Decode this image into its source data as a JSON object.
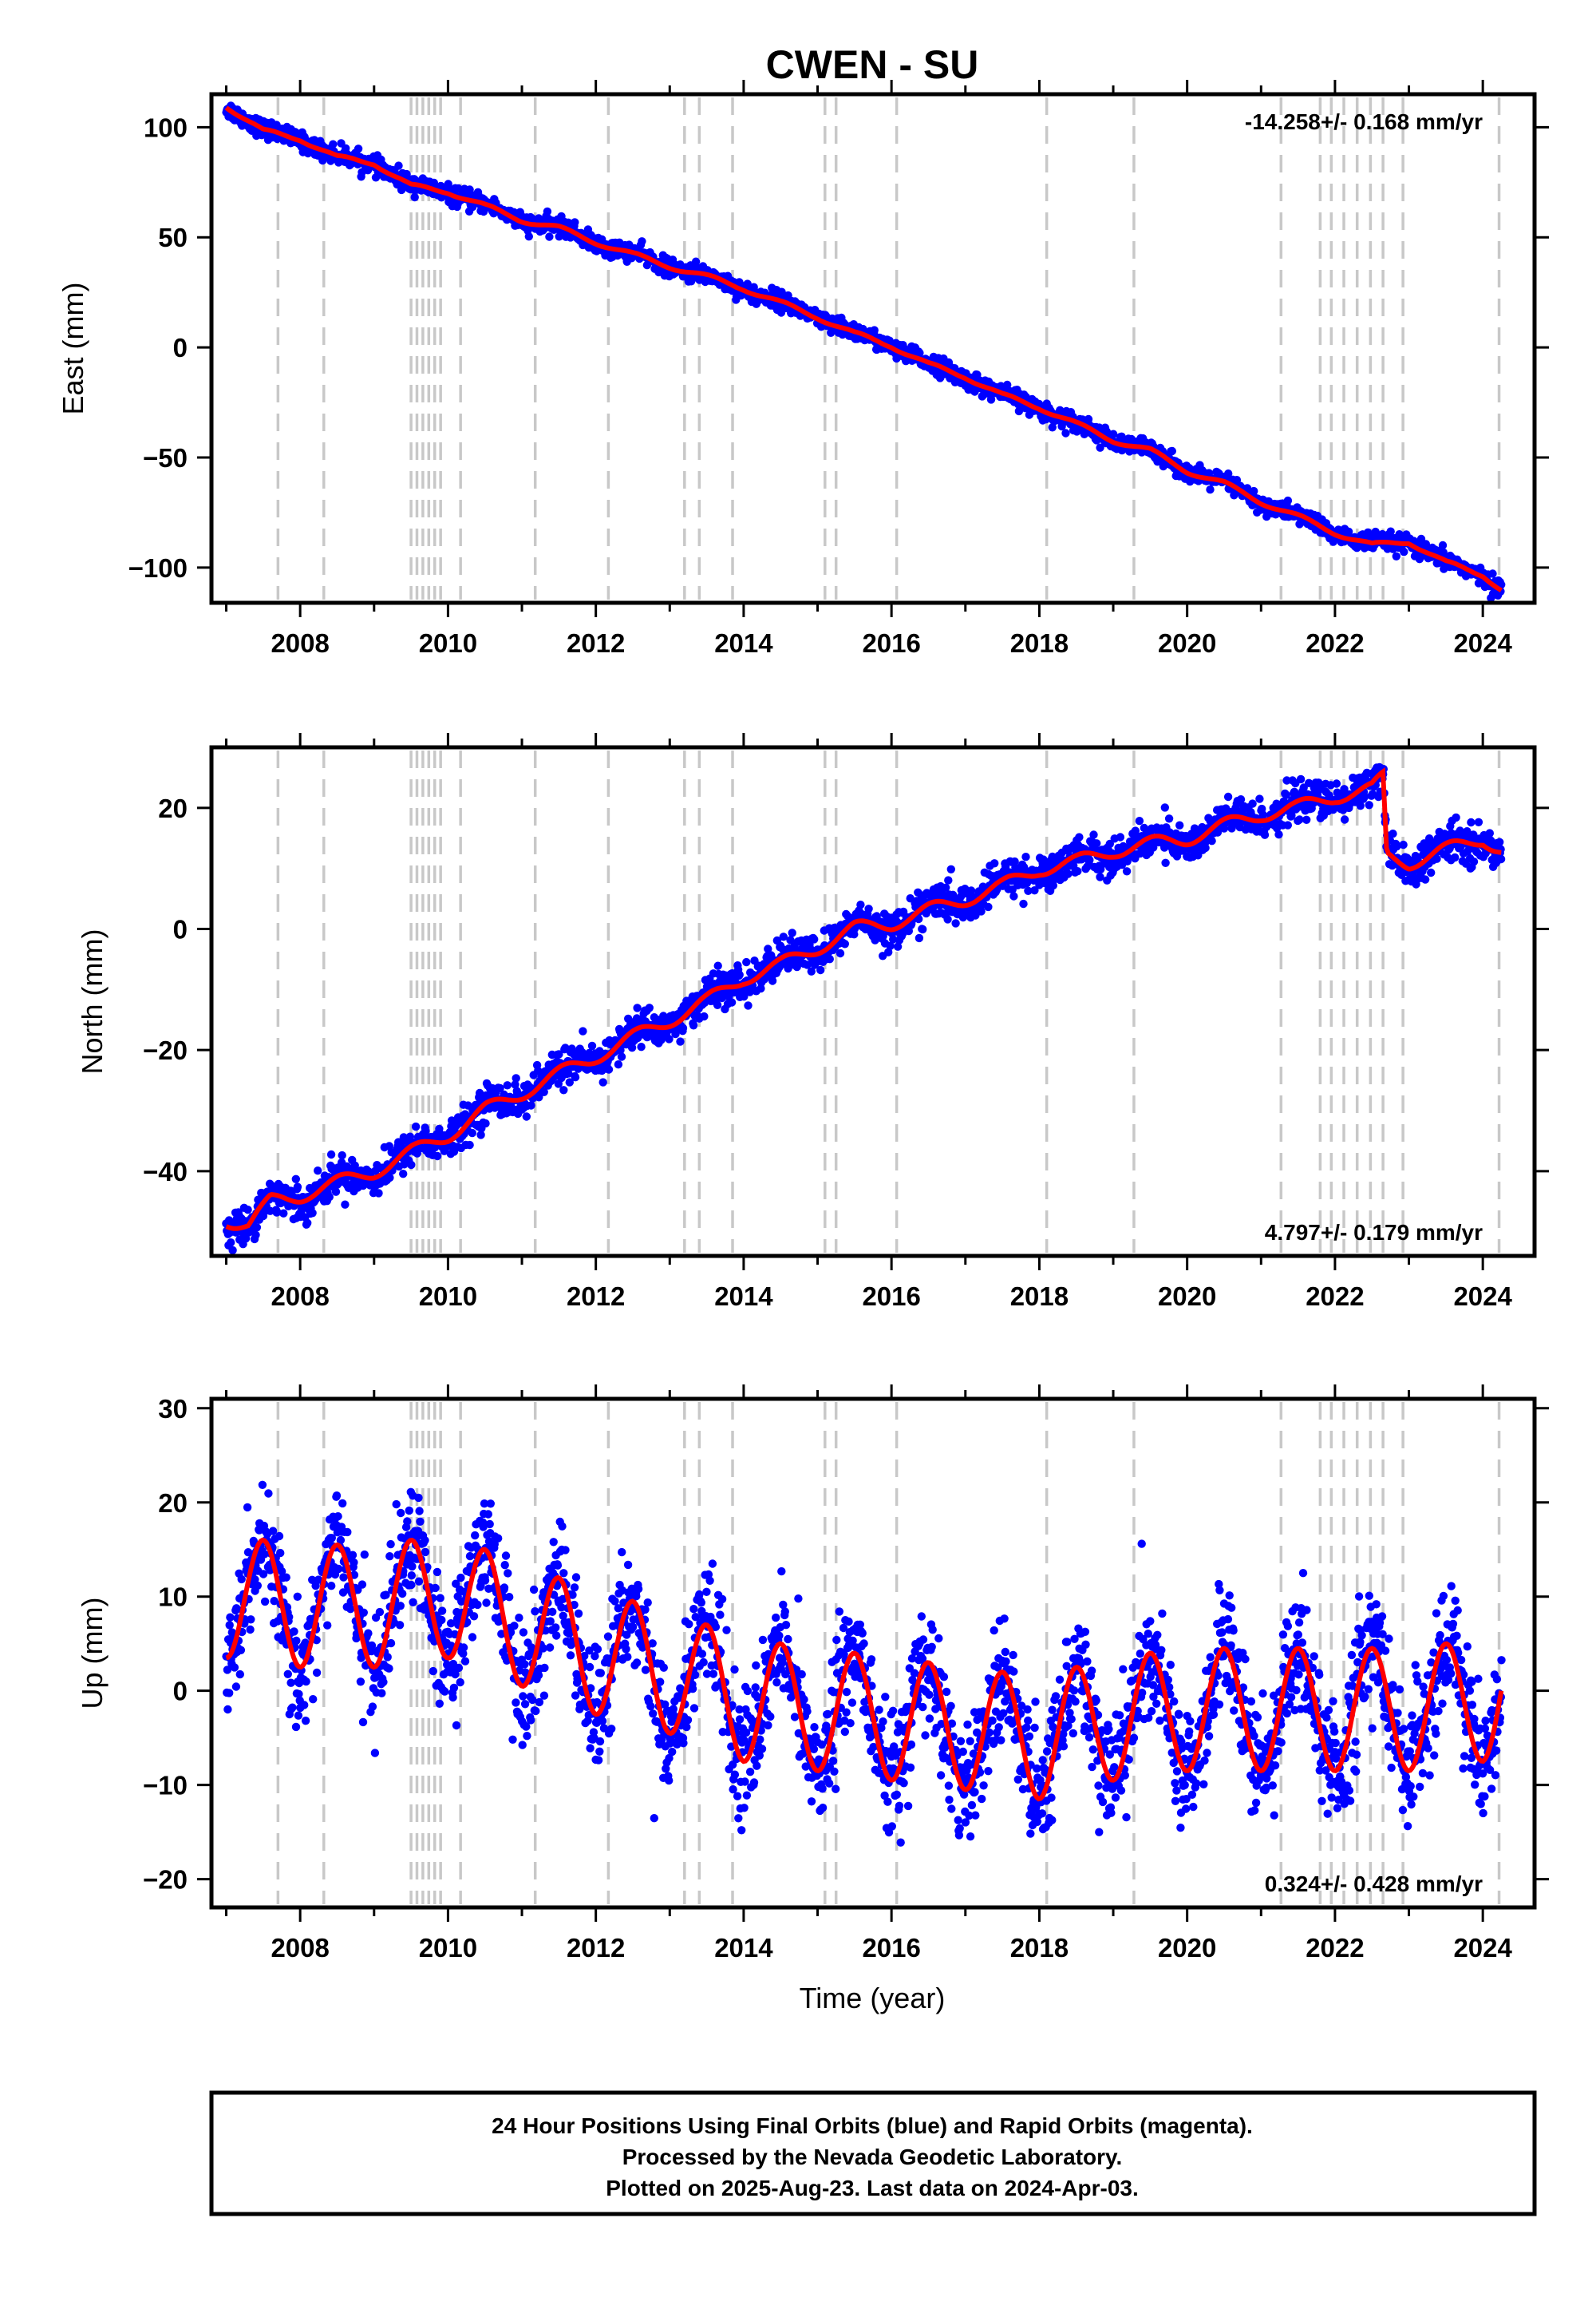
{
  "chart_data": {
    "type": "scatter",
    "title": "CWEN - SU",
    "xlabel": "Time (year)",
    "xlim": [
      2006.8,
      2024.7
    ],
    "x_ticks": [
      2008,
      2010,
      2012,
      2014,
      2016,
      2018,
      2020,
      2022,
      2024
    ],
    "x_tick_labels": [
      "2008",
      "2010",
      "2012",
      "2014",
      "2016",
      "2018",
      "2020",
      "2022",
      "2024"
    ],
    "data_range": [
      2007.0,
      2024.25
    ],
    "last_data": "2024-Apr-03",
    "colors": {
      "points": "#0000ff",
      "fit": "#ff0000",
      "event_lines": "#c8c8c8",
      "frame": "#000000"
    },
    "event_lines": [
      2007.7,
      2008.32,
      2009.5,
      2009.58,
      2009.66,
      2009.74,
      2009.82,
      2009.9,
      2010.17,
      2011.18,
      2012.17,
      2013.2,
      2013.4,
      2013.85,
      2015.1,
      2015.25,
      2016.07,
      2018.1,
      2019.28,
      2021.27,
      2021.8,
      2021.95,
      2022.12,
      2022.3,
      2022.48,
      2022.65,
      2022.92,
      2024.22
    ],
    "panels": [
      {
        "id": "east",
        "ylabel": "East (mm)",
        "ylim": [
          -116,
          115
        ],
        "y_ticks": [
          -100,
          -50,
          0,
          50,
          100
        ],
        "y_tick_labels": [
          "−100",
          "−50",
          "0",
          "50",
          "100"
        ],
        "rate": "-14.258+/- 0.168 mm/yr",
        "rate_position": "top-right",
        "slope_mm_per_yr": -14.258,
        "fit_knots": {
          "x": [
            2007.0,
            2007.5,
            2008.0,
            2008.5,
            2009.0,
            2009.5,
            2010.0,
            2010.5,
            2011.0,
            2011.5,
            2012.0,
            2012.5,
            2013.0,
            2013.5,
            2014.0,
            2014.5,
            2015.0,
            2015.5,
            2016.0,
            2016.5,
            2017.0,
            2017.5,
            2018.0,
            2018.5,
            2019.0,
            2019.5,
            2020.0,
            2020.5,
            2021.0,
            2021.5,
            2022.0,
            2022.5,
            2023.0,
            2023.5,
            2024.0,
            2024.25
          ],
          "y": [
            110,
            98,
            95,
            86,
            84,
            73,
            71,
            64,
            58,
            54,
            48,
            42,
            37,
            32,
            27,
            20,
            14,
            6,
            1,
            -8,
            -13,
            -22,
            -27,
            -35,
            -42,
            -47,
            -56,
            -62,
            -70,
            -77,
            -84,
            -90,
            -88,
            -98,
            -103,
            -110
          ]
        },
        "scatter_sigma": 2.0
      },
      {
        "id": "north",
        "ylabel": "North (mm)",
        "ylim": [
          -54,
          30
        ],
        "y_ticks": [
          -40,
          -20,
          0,
          20
        ],
        "y_tick_labels": [
          "−40",
          "−20",
          "0",
          "20"
        ],
        "rate": "4.797+/- 0.179 mm/yr",
        "rate_position": "bottom-right",
        "slope_mm_per_yr": 4.797,
        "fit_knots": {
          "x": [
            2007.0,
            2007.3,
            2007.6,
            2008.0,
            2008.5,
            2009.0,
            2009.5,
            2010.0,
            2010.5,
            2011.0,
            2011.5,
            2012.0,
            2012.5,
            2013.0,
            2013.5,
            2014.0,
            2014.5,
            2015.0,
            2015.5,
            2016.0,
            2016.5,
            2017.0,
            2017.5,
            2018.0,
            2018.5,
            2019.0,
            2019.5,
            2020.0,
            2020.5,
            2021.0,
            2021.5,
            2022.0,
            2022.5,
            2022.65,
            2022.7,
            2023.0,
            2023.5,
            2024.0,
            2024.25
          ],
          "y": [
            -48,
            -49,
            -45,
            -44,
            -42,
            -40,
            -37,
            -34,
            -30,
            -27,
            -24,
            -21,
            -18,
            -15,
            -12,
            -8,
            -6,
            -3,
            0,
            1,
            3,
            5,
            7,
            10,
            11,
            13,
            14,
            15,
            17,
            19,
            20,
            22,
            23,
            25,
            12,
            11,
            13,
            15,
            13
          ]
        },
        "scatter_sigma": 1.5
      },
      {
        "id": "up",
        "ylabel": "Up (mm)",
        "ylim": [
          -23,
          31
        ],
        "y_ticks": [
          -20,
          -10,
          0,
          10,
          20,
          30
        ],
        "y_tick_labels": [
          "−20",
          "−10",
          "0",
          "10",
          "20",
          "30"
        ],
        "rate": "0.324+/- 0.428 mm/yr",
        "rate_position": "bottom-right",
        "slope_mm_per_yr": 0.324,
        "annual_amplitude_mm": 6.5,
        "fit_knots": {
          "x": [
            2007.0,
            2008.0,
            2009.0,
            2010.0,
            2011.0,
            2012.0,
            2013.0,
            2014.0,
            2015.0,
            2016.0,
            2017.0,
            2018.0,
            2019.0,
            2020.0,
            2021.0,
            2022.0,
            2023.0,
            2024.0,
            2024.25
          ],
          "y": [
            10,
            9,
            9,
            10,
            7,
            4,
            2,
            -1,
            -2,
            -3,
            -4,
            -5,
            -3,
            -2,
            -2,
            -2,
            -2,
            -1,
            0
          ]
        },
        "scatter_sigma": 3.0
      }
    ]
  },
  "footer": {
    "line1": "24 Hour Positions Using Final Orbits (blue) and Rapid Orbits (magenta).",
    "line2": "Processed by the Nevada Geodetic Laboratory.",
    "line3": "Plotted on 2025-Aug-23. Last data on 2024-Apr-03."
  }
}
